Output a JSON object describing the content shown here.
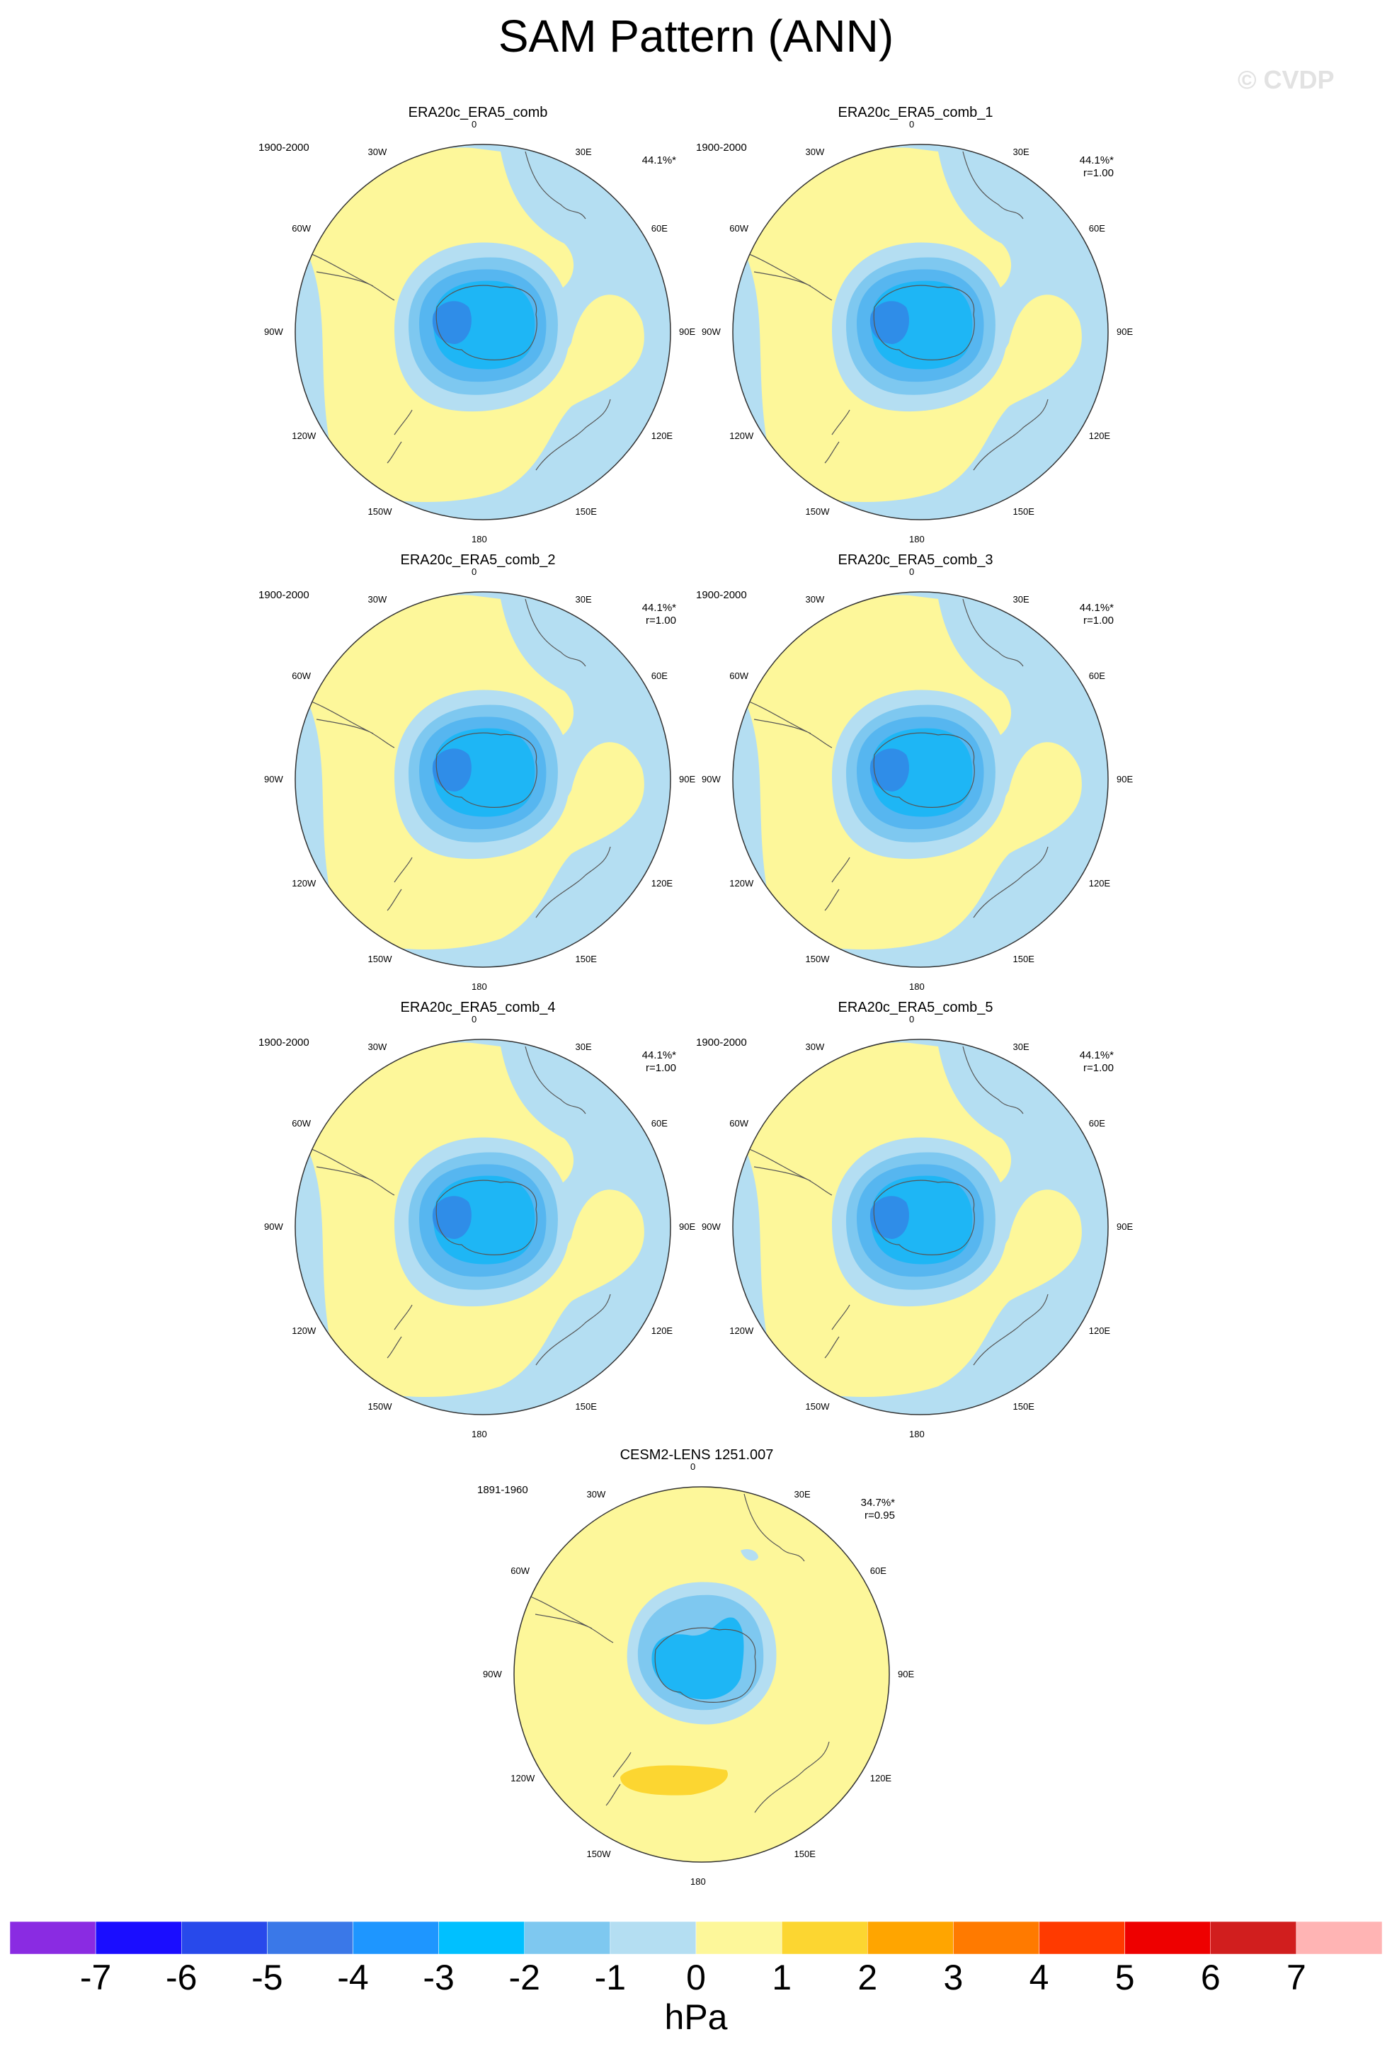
{
  "title": "SAM Pattern (ANN)",
  "watermark": "© CVDP",
  "lon_labels": [
    "0",
    "30E",
    "60E",
    "90E",
    "120E",
    "150E",
    "180",
    "150W",
    "120W",
    "90W",
    "60W",
    "30W"
  ],
  "panels": [
    {
      "title": "ERA20c_ERA5_comb",
      "period": "1900-2000",
      "pct": "44.1%*",
      "corr": ""
    },
    {
      "title": "ERA20c_ERA5_comb_1",
      "period": "1900-2000",
      "pct": "44.1%*",
      "corr": "r=1.00"
    },
    {
      "title": "ERA20c_ERA5_comb_2",
      "period": "1900-2000",
      "pct": "44.1%*",
      "corr": "r=1.00"
    },
    {
      "title": "ERA20c_ERA5_comb_3",
      "period": "1900-2000",
      "pct": "44.1%*",
      "corr": "r=1.00"
    },
    {
      "title": "ERA20c_ERA5_comb_4",
      "period": "1900-2000",
      "pct": "44.1%*",
      "corr": "r=1.00"
    },
    {
      "title": "ERA20c_ERA5_comb_5",
      "period": "1900-2000",
      "pct": "44.1%*",
      "corr": "r=1.00"
    },
    {
      "title": "CESM2-LENS 1251.007",
      "period": "1891-1960",
      "pct": "34.7%*",
      "corr": "r=0.95"
    }
  ],
  "colorbar": {
    "unit": "hPa",
    "labels": [
      "-7",
      "-6",
      "-5",
      "-4",
      "-3",
      "-2",
      "-1",
      "0",
      "1",
      "2",
      "3",
      "4",
      "5",
      "6",
      "7"
    ],
    "colors": [
      "#8a2be2",
      "#1a0dff",
      "#2849eb",
      "#3a78e8",
      "#1e96ff",
      "#00c0ff",
      "#7ec8f0",
      "#b4def2",
      "#fdf79a",
      "#fcd631",
      "#ffa500",
      "#ff7a00",
      "#ff3a00",
      "#ee0000",
      "#d11e1e",
      "#ffb4b4"
    ]
  }
}
